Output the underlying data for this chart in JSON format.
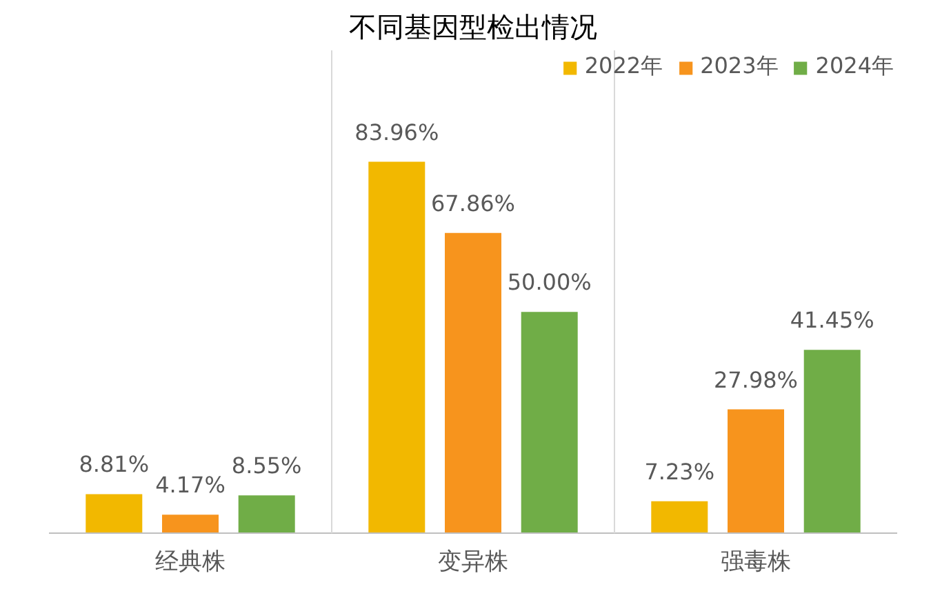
{
  "chart_data": {
    "type": "bar",
    "title": "不同基因型检出情况",
    "categories": [
      "经典株",
      "变异株",
      "强毒株"
    ],
    "series": [
      {
        "name": "2022年",
        "color": "#f2b800",
        "values": [
          8.81,
          83.96,
          7.23
        ],
        "value_labels": [
          "8.81%",
          "83.96%",
          "7.23%"
        ]
      },
      {
        "name": "2023年",
        "color": "#f7941d",
        "values": [
          4.17,
          67.86,
          27.98
        ],
        "value_labels": [
          "4.17%",
          "67.86%",
          "27.98%"
        ]
      },
      {
        "name": "2024年",
        "color": "#70ad47",
        "values": [
          8.55,
          50.0,
          41.45
        ],
        "value_labels": [
          "8.55%",
          "50.00%",
          "41.45%"
        ]
      }
    ],
    "grid": "x",
    "legend": "top right"
  }
}
